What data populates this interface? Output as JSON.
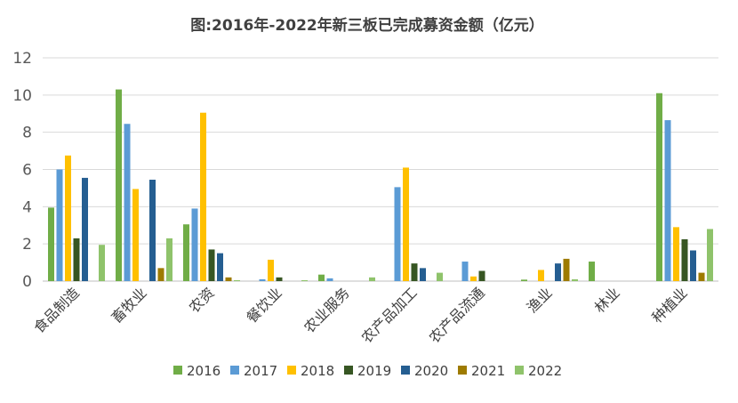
{
  "chart_data": {
    "type": "bar",
    "title": "图:2016年-2022年新三板已完成募资金额（亿元）",
    "xlabel": "",
    "ylabel": "",
    "ylim": [
      0,
      12
    ],
    "yticks": [
      "0",
      "2",
      "4",
      "6",
      "8",
      "10",
      "12"
    ],
    "grid": true,
    "legend_position": "bottom",
    "categories": [
      "食品制造",
      "畜牧业",
      "农资",
      "餐饮业",
      "农业服务",
      "农产品加工",
      "农产品流通",
      "渔业",
      "林业",
      "种植业"
    ],
    "series": [
      {
        "name": "2016",
        "color": "#70ad47",
        "values": [
          3.95,
          10.3,
          3.05,
          0,
          0.35,
          0,
          0,
          0.08,
          1.05,
          10.1
        ]
      },
      {
        "name": "2017",
        "color": "#5b9bd5",
        "values": [
          6.0,
          8.45,
          3.9,
          0.1,
          0.15,
          5.05,
          1.05,
          0,
          0,
          8.65
        ]
      },
      {
        "name": "2018",
        "color": "#ffc000",
        "values": [
          6.75,
          4.95,
          9.05,
          1.15,
          0,
          6.1,
          0.25,
          0.6,
          0,
          2.9
        ]
      },
      {
        "name": "2019",
        "color": "#375623",
        "values": [
          2.3,
          0,
          1.7,
          0.2,
          0,
          0.95,
          0.55,
          0,
          0,
          2.25
        ]
      },
      {
        "name": "2020",
        "color": "#255e91",
        "values": [
          5.55,
          5.45,
          1.5,
          0,
          0,
          0.7,
          0,
          0.95,
          0,
          1.65
        ]
      },
      {
        "name": "2021",
        "color": "#9e7b00",
        "values": [
          0,
          0.7,
          0.2,
          0,
          0,
          0,
          0,
          1.2,
          0,
          0.45
        ]
      },
      {
        "name": "2022",
        "color": "#8fc36b",
        "values": [
          1.95,
          2.3,
          0.05,
          0.05,
          0.2,
          0.45,
          0,
          0.1,
          0,
          2.8
        ]
      }
    ]
  }
}
